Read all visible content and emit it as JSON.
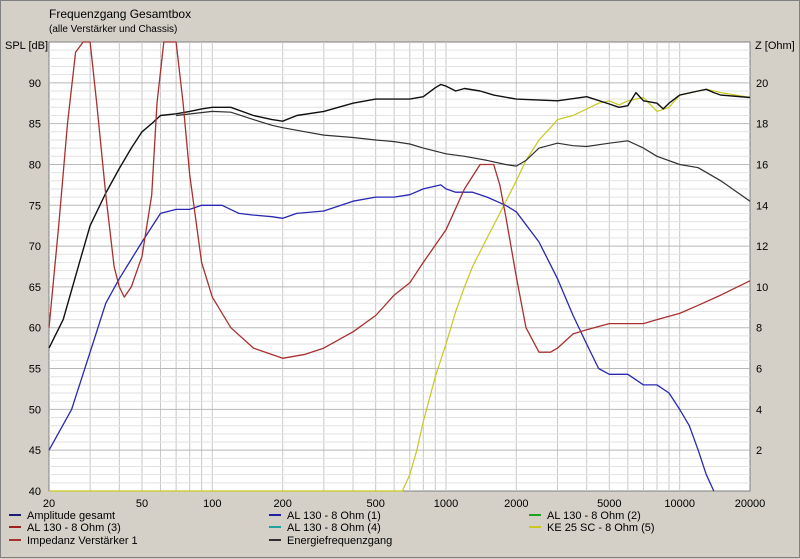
{
  "chart_data": {
    "type": "line",
    "title": "Frequenzgang Gesamtbox",
    "subtitle": "(alle Verstärker und Chassis)",
    "y_left_label": "SPL [dB]",
    "y_right_label": "Z [Ohm]",
    "x_scale": "log",
    "xlim": [
      20,
      20000
    ],
    "ylim_left": [
      40,
      95
    ],
    "ylim_right": [
      0,
      22
    ],
    "grid": true,
    "x_ticks": [
      20,
      50,
      100,
      200,
      500,
      1000,
      2000,
      5000,
      10000,
      20000
    ],
    "y_left_ticks": [
      40,
      45,
      50,
      55,
      60,
      65,
      70,
      75,
      80,
      85,
      90
    ],
    "y_right_ticks": [
      2,
      4,
      6,
      8,
      10,
      12,
      14,
      16,
      18,
      20
    ],
    "series": [
      {
        "name": "Amplitude gesamt",
        "color": "#1c1c70",
        "axis": "left",
        "points": []
      },
      {
        "name": "AL 130 - 8 Ohm (1)",
        "color": "#2020a0",
        "axis": "left",
        "points": []
      },
      {
        "name": "AL 130 - 8 Ohm (2)",
        "color": "#20a020",
        "axis": "left",
        "points": []
      },
      {
        "name": "AL 130 - 8 Ohm (3)",
        "color": "#a02020",
        "axis": "left",
        "points": []
      },
      {
        "name": "AL 130 - 8 Ohm (4)",
        "color": "#20a0a0",
        "axis": "left",
        "points": []
      },
      {
        "name": "KE 25 SC - 8 Ohm   (5)",
        "color": "#c8c820",
        "axis": "left",
        "points": []
      },
      {
        "name": "Impedanz Verstärker 1",
        "color": "#a83030",
        "axis": "right",
        "points": []
      },
      {
        "name": "Energiefrequenzgang",
        "color": "#303030",
        "axis": "left",
        "points": []
      }
    ],
    "curves": {
      "woofer_blue": [
        [
          20,
          45
        ],
        [
          25,
          50
        ],
        [
          30,
          57
        ],
        [
          35,
          63
        ],
        [
          40,
          66
        ],
        [
          50,
          70.5
        ],
        [
          60,
          74
        ],
        [
          70,
          74.5
        ],
        [
          80,
          74.5
        ],
        [
          90,
          75
        ],
        [
          100,
          75
        ],
        [
          110,
          75
        ],
        [
          130,
          74
        ],
        [
          150,
          73.8
        ],
        [
          180,
          73.6
        ],
        [
          200,
          73.4
        ],
        [
          230,
          74
        ],
        [
          300,
          74.3
        ],
        [
          400,
          75.5
        ],
        [
          500,
          76
        ],
        [
          600,
          76
        ],
        [
          700,
          76.3
        ],
        [
          800,
          77
        ],
        [
          950,
          77.5
        ],
        [
          1000,
          77
        ],
        [
          1100,
          76.6
        ],
        [
          1300,
          76.6
        ],
        [
          1500,
          76
        ],
        [
          1800,
          75
        ],
        [
          2000,
          74.2
        ],
        [
          2500,
          70.5
        ],
        [
          3000,
          66
        ],
        [
          3500,
          61.5
        ],
        [
          4000,
          58
        ],
        [
          4500,
          55
        ],
        [
          5000,
          54.3
        ],
        [
          6000,
          54.3
        ],
        [
          7000,
          53
        ],
        [
          8000,
          53
        ],
        [
          9000,
          52
        ],
        [
          10000,
          50
        ],
        [
          11000,
          48
        ],
        [
          12000,
          45
        ],
        [
          13000,
          42
        ],
        [
          14000,
          40
        ]
      ],
      "amplitude_black": [
        [
          20,
          57.5
        ],
        [
          23,
          61
        ],
        [
          27,
          68
        ],
        [
          30,
          72.5
        ],
        [
          35,
          76.5
        ],
        [
          40,
          79.5
        ],
        [
          45,
          82
        ],
        [
          50,
          84
        ],
        [
          55,
          85
        ],
        [
          60,
          86
        ],
        [
          70,
          86.2
        ],
        [
          80,
          86.5
        ],
        [
          90,
          86.8
        ],
        [
          100,
          87
        ],
        [
          120,
          87
        ],
        [
          150,
          86
        ],
        [
          180,
          85.5
        ],
        [
          200,
          85.3
        ],
        [
          230,
          86
        ],
        [
          300,
          86.5
        ],
        [
          400,
          87.5
        ],
        [
          500,
          88
        ],
        [
          600,
          88
        ],
        [
          700,
          88
        ],
        [
          800,
          88.3
        ],
        [
          900,
          89.4
        ],
        [
          950,
          89.8
        ],
        [
          1000,
          89.6
        ],
        [
          1100,
          89
        ],
        [
          1200,
          89.3
        ],
        [
          1400,
          89
        ],
        [
          1600,
          88.5
        ],
        [
          2000,
          88
        ],
        [
          3000,
          87.8
        ],
        [
          4000,
          88.3
        ],
        [
          5000,
          87.4
        ],
        [
          5500,
          87
        ],
        [
          6000,
          87.2
        ],
        [
          6500,
          88.8
        ],
        [
          7000,
          87.8
        ],
        [
          8000,
          87.5
        ],
        [
          8500,
          86.8
        ],
        [
          9000,
          87.5
        ],
        [
          10000,
          88.5
        ],
        [
          12000,
          89
        ],
        [
          13000,
          89.2
        ],
        [
          14000,
          88.8
        ],
        [
          15000,
          88.5
        ],
        [
          20000,
          88.2
        ]
      ],
      "energy_dark": [
        [
          70,
          86
        ],
        [
          100,
          86.5
        ],
        [
          120,
          86.4
        ],
        [
          150,
          85.5
        ],
        [
          180,
          84.8
        ],
        [
          200,
          84.5
        ],
        [
          250,
          84
        ],
        [
          300,
          83.6
        ],
        [
          400,
          83.3
        ],
        [
          500,
          83
        ],
        [
          600,
          82.8
        ],
        [
          700,
          82.5
        ],
        [
          800,
          82
        ],
        [
          1000,
          81.3
        ],
        [
          1200,
          81
        ],
        [
          1500,
          80.5
        ],
        [
          1800,
          80
        ],
        [
          2000,
          79.8
        ],
        [
          2200,
          80.5
        ],
        [
          2500,
          82
        ],
        [
          3000,
          82.6
        ],
        [
          3500,
          82.3
        ],
        [
          4000,
          82.2
        ],
        [
          5000,
          82.6
        ],
        [
          6000,
          82.9
        ],
        [
          7000,
          82
        ],
        [
          8000,
          81
        ],
        [
          10000,
          80
        ],
        [
          12000,
          79.6
        ],
        [
          15000,
          78
        ],
        [
          20000,
          75.5
        ]
      ],
      "tweeter_yellow": [
        [
          20,
          40
        ],
        [
          500,
          40
        ],
        [
          650,
          40
        ],
        [
          700,
          42
        ],
        [
          750,
          45
        ],
        [
          800,
          48.5
        ],
        [
          900,
          54
        ],
        [
          1000,
          58
        ],
        [
          1100,
          62
        ],
        [
          1200,
          65
        ],
        [
          1300,
          67.5
        ],
        [
          1500,
          71
        ],
        [
          1700,
          74
        ],
        [
          2000,
          78
        ],
        [
          2200,
          80.5
        ],
        [
          2500,
          83
        ],
        [
          2800,
          84.5
        ],
        [
          3000,
          85.5
        ],
        [
          3500,
          86
        ],
        [
          4000,
          86.8
        ],
        [
          4500,
          87.5
        ],
        [
          5000,
          87.8
        ],
        [
          5500,
          87.3
        ],
        [
          6000,
          87.8
        ],
        [
          7000,
          88.2
        ],
        [
          8000,
          86.5
        ],
        [
          9000,
          87
        ],
        [
          10000,
          88.5
        ],
        [
          12000,
          89
        ],
        [
          13000,
          89.2
        ],
        [
          15000,
          88.8
        ],
        [
          20000,
          88.2
        ]
      ],
      "impedance_z": [
        [
          20,
          8
        ],
        [
          22,
          13
        ],
        [
          24,
          18
        ],
        [
          26,
          21.5
        ],
        [
          28,
          22.5
        ],
        [
          30,
          22
        ],
        [
          32,
          19
        ],
        [
          35,
          14.5
        ],
        [
          38,
          11
        ],
        [
          40,
          10
        ],
        [
          42,
          9.5
        ],
        [
          45,
          10
        ],
        [
          50,
          11.5
        ],
        [
          55,
          14.5
        ],
        [
          58,
          19
        ],
        [
          62,
          22
        ],
        [
          65,
          22.5
        ],
        [
          70,
          22
        ],
        [
          75,
          19
        ],
        [
          80,
          15.5
        ],
        [
          90,
          11.2
        ],
        [
          100,
          9.5
        ],
        [
          120,
          8
        ],
        [
          150,
          7
        ],
        [
          200,
          6.5
        ],
        [
          250,
          6.7
        ],
        [
          300,
          7
        ],
        [
          400,
          7.8
        ],
        [
          500,
          8.6
        ],
        [
          600,
          9.6
        ],
        [
          700,
          10.2
        ],
        [
          800,
          11.2
        ],
        [
          1000,
          12.8
        ],
        [
          1200,
          14.8
        ],
        [
          1400,
          16
        ],
        [
          1600,
          16
        ],
        [
          1700,
          15
        ],
        [
          1800,
          13.5
        ],
        [
          2000,
          10.5
        ],
        [
          2200,
          8
        ],
        [
          2500,
          6.8
        ],
        [
          2800,
          6.8
        ],
        [
          3000,
          7
        ],
        [
          3500,
          7.7
        ],
        [
          4000,
          7.9
        ],
        [
          5000,
          8.2
        ],
        [
          6000,
          8.2
        ],
        [
          7000,
          8.2
        ],
        [
          8000,
          8.4
        ],
        [
          10000,
          8.7
        ],
        [
          12000,
          9.1
        ],
        [
          15000,
          9.6
        ],
        [
          20000,
          10.3
        ]
      ]
    },
    "legend": [
      {
        "label": "Amplitude gesamt",
        "color": "#1c1c70"
      },
      {
        "label": "AL 130 - 8 Ohm (1)",
        "color": "#2020a0"
      },
      {
        "label": "AL 130 - 8 Ohm (2)",
        "color": "#20a020"
      },
      {
        "label": "AL 130 - 8 Ohm (3)",
        "color": "#a02020"
      },
      {
        "label": "AL 130 - 8 Ohm (4)",
        "color": "#20a0a0"
      },
      {
        "label": "KE 25 SC - 8 Ohm   (5)",
        "color": "#c8c820"
      },
      {
        "label": "Impedanz Verstärker 1",
        "color": "#a83030"
      },
      {
        "label": "Energiefrequenzgang",
        "color": "#303030"
      }
    ]
  }
}
